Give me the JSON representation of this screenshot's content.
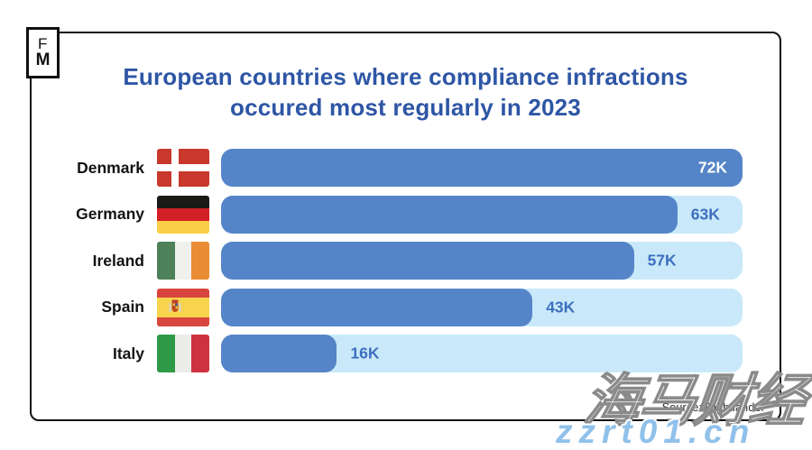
{
  "logo": {
    "top": "F",
    "bottom": "M"
  },
  "header": {
    "title_line1": "European countries where compliance infractions",
    "title_line2": "occured most regularly in 2023",
    "title_color": "#2E56A5"
  },
  "chart_data": {
    "type": "bar",
    "orientation": "horizontal",
    "title": "European countries where compliance infractions occured most regularly in 2023",
    "categories": [
      "Denmark",
      "Germany",
      "Ireland",
      "Spain",
      "Italy"
    ],
    "values": [
      72000,
      63000,
      57000,
      43000,
      16000
    ],
    "value_labels": [
      "72K",
      "63K",
      "57K",
      "43K",
      "16K"
    ],
    "value_label_inside": [
      true,
      false,
      false,
      false,
      false
    ],
    "xlim": [
      0,
      72000
    ],
    "xlabel": "",
    "ylabel": "",
    "grid": false,
    "legend": "none",
    "bar_color": "#5585C8",
    "track_color": "#C9E9FA",
    "value_text_color": "#3D6FBE",
    "value_text_color_inside": "#FFFFFF",
    "flag_icons": [
      "denmark-flag-icon",
      "germany-flag-icon",
      "ireland-flag-icon",
      "spain-flag-icon",
      "italy-flag-icon"
    ]
  },
  "footer": {
    "source": "Source: Rightlander"
  },
  "watermark": {
    "line1": "海马财经",
    "line2": "zzrt01.cn",
    "line2_color": "#8FC1EA"
  }
}
